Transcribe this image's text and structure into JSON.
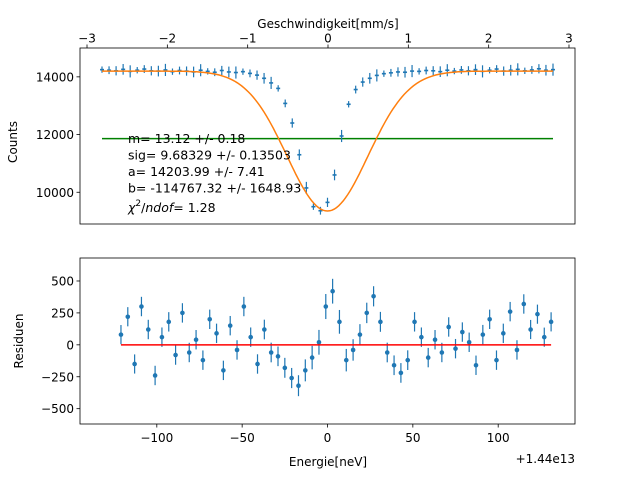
{
  "chart_data": [
    {
      "type": "line",
      "ylabel": "Counts",
      "top_xlabel": "Geschwindigkeit[mm/s]",
      "top_xticks": [
        "−3",
        "−2",
        "−1",
        "0",
        "1",
        "2",
        "3"
      ],
      "top_xtick_values": [
        -3,
        -2,
        -1,
        0,
        1,
        2,
        3
      ],
      "ylim": [
        8900,
        15000
      ],
      "yticks": [
        10000,
        12000,
        14000
      ],
      "ytick_labels": [
        "10000",
        "12000",
        "14000"
      ],
      "series": [
        {
          "kind": "measured counts with error bars",
          "color": "#1f77b4",
          "x": [
            -1.28,
            -1.24,
            -1.2,
            -1.16,
            -1.12,
            -1.08,
            -1.04,
            -1.0,
            -0.96,
            -0.92,
            -0.88,
            -0.84,
            -0.8,
            -0.76,
            -0.72,
            -0.68,
            -0.64,
            -0.6,
            -0.56,
            -0.52,
            -0.48,
            -0.44,
            -0.4,
            -0.36,
            -0.32,
            -0.28,
            -0.24,
            -0.2,
            -0.16,
            -0.12,
            -0.08,
            -0.04,
            0.0,
            0.04,
            0.08,
            0.12,
            0.16,
            0.2,
            0.24,
            0.28,
            0.32,
            0.36,
            0.4,
            0.44,
            0.48,
            0.52,
            0.56,
            0.6,
            0.64,
            0.68,
            0.72,
            0.76,
            0.8,
            0.84,
            0.88,
            0.92,
            0.96,
            1.0,
            1.04,
            1.08,
            1.12,
            1.16,
            1.2,
            1.24,
            1.28
          ],
          "y": [
            14250,
            14230,
            14210,
            14260,
            14190,
            14230,
            14270,
            14210,
            14200,
            14240,
            14180,
            14220,
            14200,
            14170,
            14230,
            14190,
            14160,
            14220,
            14170,
            14150,
            14180,
            14120,
            14060,
            13950,
            13790,
            13600,
            13080,
            12400,
            11300,
            10150,
            9500,
            9360,
            9650,
            10600,
            11950,
            13050,
            13560,
            13820,
            13950,
            14050,
            14110,
            14140,
            14170,
            14160,
            14200,
            14190,
            14220,
            14210,
            14180,
            14230,
            14200,
            14240,
            14210,
            14250,
            14190,
            14230,
            14270,
            14200,
            14230,
            14260,
            14210,
            14240,
            14280,
            14230,
            14250
          ]
        },
        {
          "kind": "fit",
          "color": "#ff7f0e"
        },
        {
          "kind": "background level",
          "color": "#008000",
          "y": 11860
        }
      ],
      "annotations": [
        "m= 13.12 +/- 0.18",
        "sig= 9.68329 +/- 0.13503",
        "a= 14203.99 +/- 7.41",
        "b= -114767.32 +/- 1648.93"
      ],
      "chi2": {
        "symbol": "χ",
        "power": "2",
        "slash": "/",
        "dof": "ndof",
        "rest": "= 1.28"
      }
    },
    {
      "type": "scatter",
      "xlabel": "Energie[neV]",
      "ylabel": "Residuen",
      "offset_text": "+1.44e13",
      "xlim": [
        -145,
        145
      ],
      "ylim": [
        -620,
        680
      ],
      "xticks": [
        -100,
        -50,
        0,
        50,
        100
      ],
      "xtick_labels": [
        "−100",
        "−50",
        "0",
        "50",
        "100"
      ],
      "yticks": [
        -500,
        -250,
        0,
        250,
        500
      ],
      "ytick_labels": [
        "−500",
        "−250",
        "0",
        "250",
        "500"
      ],
      "zero_line_color": "#ff0000",
      "marker_color": "#1f77b4",
      "x": [
        -121,
        -117,
        -113,
        -109,
        -105,
        -101,
        -97,
        -93,
        -89,
        -85,
        -81,
        -77,
        -73,
        -69,
        -65,
        -61,
        -57,
        -53,
        -49,
        -45,
        -41,
        -37,
        -33,
        -29,
        -25,
        -21,
        -17,
        -13,
        -9,
        -5,
        -1,
        3,
        7,
        11,
        15,
        19,
        23,
        27,
        31,
        35,
        39,
        43,
        47,
        51,
        55,
        59,
        63,
        67,
        71,
        75,
        79,
        83,
        87,
        91,
        95,
        99,
        103,
        107,
        111,
        115,
        119,
        123,
        127,
        131
      ],
      "y": [
        80,
        220,
        -150,
        300,
        120,
        -240,
        60,
        180,
        -80,
        250,
        -60,
        40,
        -120,
        200,
        90,
        -200,
        150,
        -40,
        300,
        60,
        -150,
        120,
        -60,
        -90,
        -180,
        -260,
        -320,
        -200,
        -100,
        20,
        300,
        420,
        180,
        -120,
        -40,
        80,
        250,
        380,
        180,
        -60,
        -160,
        -220,
        -120,
        180,
        60,
        -100,
        40,
        -60,
        140,
        -30,
        100,
        20,
        -160,
        80,
        200,
        -120,
        90,
        260,
        -40,
        320,
        120,
        240,
        60,
        180
      ],
      "errors": [
        75,
        75,
        75,
        76,
        76,
        76,
        76,
        76,
        76,
        76,
        76,
        76,
        76,
        76,
        76,
        76,
        76,
        76,
        76,
        76,
        76,
        77,
        77,
        77,
        78,
        79,
        82,
        86,
        92,
        97,
        98,
        97,
        93,
        88,
        84,
        82,
        80,
        79,
        78,
        77,
        77,
        77,
        77,
        76,
        76,
        76,
        76,
        76,
        76,
        76,
        76,
        76,
        76,
        76,
        76,
        76,
        76,
        76,
        76,
        76,
        75,
        75,
        75,
        75
      ]
    }
  ]
}
